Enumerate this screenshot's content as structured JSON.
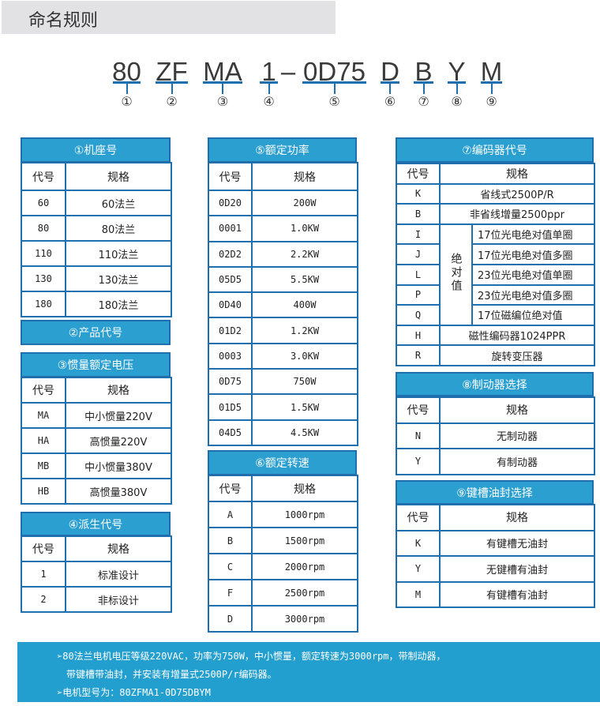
{
  "page_title": "命名规则",
  "model_parts": [
    {
      "text": "80",
      "index": "①"
    },
    {
      "text": "ZF",
      "index": "②"
    },
    {
      "text": "MA",
      "index": "③"
    },
    {
      "text": "1",
      "index": "④"
    },
    {
      "text": "–",
      "index": ""
    },
    {
      "text": "0D75",
      "index": "⑤"
    },
    {
      "text": "D",
      "index": "⑥"
    },
    {
      "text": "B",
      "index": "⑦"
    },
    {
      "text": "Y",
      "index": "⑧"
    },
    {
      "text": "M",
      "index": "⑨"
    }
  ],
  "colors": {
    "header_bg": "#2a9fd0",
    "border": "#1f6fae",
    "banner_bg": "#239fcf",
    "title_bar_bg": "#e2e2e4"
  },
  "col_headers": {
    "code": "代号",
    "spec": "规格"
  },
  "sections": {
    "frame": {
      "title": "①机座号",
      "rows": [
        [
          "60",
          "60法兰"
        ],
        [
          "80",
          "80法兰"
        ],
        [
          "110",
          "110法兰"
        ],
        [
          "130",
          "130法兰"
        ],
        [
          "180",
          "180法兰"
        ]
      ]
    },
    "product": {
      "title": "②产品代号"
    },
    "inertia": {
      "title": "③惯量额定电压",
      "rows": [
        [
          "MA",
          "中小惯量220V"
        ],
        [
          "HA",
          "高惯量220V"
        ],
        [
          "MB",
          "中小惯量380V"
        ],
        [
          "HB",
          "高惯量380V"
        ]
      ]
    },
    "derive": {
      "title": "④派生代号",
      "rows": [
        [
          "1",
          "标准设计"
        ],
        [
          "2",
          "非标设计"
        ]
      ]
    },
    "power": {
      "title": "⑤额定功率",
      "rows": [
        [
          "0D20",
          "200W"
        ],
        [
          "0001",
          "1.0KW"
        ],
        [
          "02D2",
          "2.2KW"
        ],
        [
          "05D5",
          "5.5KW"
        ],
        [
          "0D40",
          "400W"
        ],
        [
          "01D2",
          "1.2KW"
        ],
        [
          "0003",
          "3.0KW"
        ],
        [
          "0D75",
          "750W"
        ],
        [
          "01D5",
          "1.5KW"
        ],
        [
          "04D5",
          "4.5KW"
        ]
      ]
    },
    "speed": {
      "title": "⑥额定转速",
      "rows": [
        [
          "A",
          "1000rpm"
        ],
        [
          "B",
          "1500rpm"
        ],
        [
          "C",
          "2000rpm"
        ],
        [
          "F",
          "2500rpm"
        ],
        [
          "D",
          "3000rpm"
        ]
      ]
    },
    "encoder": {
      "title": "⑦编码器代号",
      "group_label": "绝对值",
      "rows": [
        [
          "K",
          "省线式2500P/R"
        ],
        [
          "B",
          "非省线增量2500ppr"
        ],
        [
          "I",
          "17位光电绝对值单圈",
          true
        ],
        [
          "J",
          "17位光电绝对值多圈",
          true
        ],
        [
          "L",
          "23位光电绝对值单圈",
          true
        ],
        [
          "P",
          "23位光电绝对值多圈",
          true
        ],
        [
          "Q",
          "17位磁编位绝对值",
          true
        ],
        [
          "H",
          "磁性编码器1024PPR"
        ],
        [
          "R",
          "旋转变压器"
        ]
      ]
    },
    "brake": {
      "title": "⑧制动器选择",
      "rows": [
        [
          "N",
          "无制动器"
        ],
        [
          "Y",
          "有制动器"
        ]
      ]
    },
    "keyway": {
      "title": "⑨键槽油封选择",
      "rows": [
        [
          "K",
          "有键槽无油封"
        ],
        [
          "Y",
          "无键槽有油封"
        ],
        [
          "M",
          "有键槽有油封"
        ]
      ]
    }
  },
  "banner": {
    "line1": "➢80法兰电机电压等级220VAC，功率为750W，中小惯量，额定转速为3000rpm，带制动器，",
    "line2": "带键槽带油封，并安装有增量式2500P/r编码器。",
    "line3": "➢电机型号为：80ZFMA1-0D75DBYM"
  }
}
